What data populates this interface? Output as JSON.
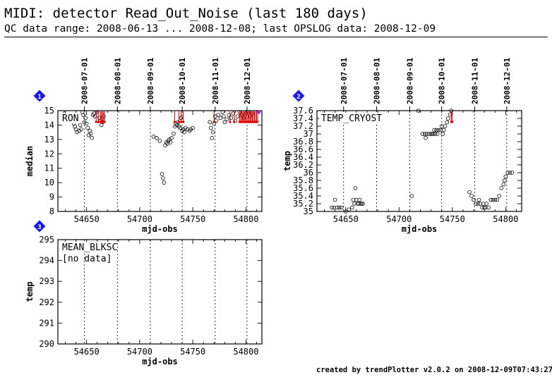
{
  "header": {
    "title": "MIDI: detector Read_Out_Noise (last 180 days)",
    "subtitle": "QC data range: 2008-06-13 ... 2008-12-08; last OPSLOG data: 2008-12-09"
  },
  "footer": {
    "text": "created by trendPlotter v2.0.2 on 2008-12-09T07:43:27"
  },
  "colors": {
    "badge": "#1a1ae6",
    "outlier": "#e00000",
    "marker": "#000000",
    "special": "#a020f0"
  },
  "chart_data": [
    {
      "type": "scatter",
      "badge": "1",
      "label": "RON",
      "xlabel": "mjd-obs",
      "ylabel": "median",
      "xlim": [
        54623,
        54815
      ],
      "ylim": [
        8,
        15
      ],
      "xticks": [
        54650,
        54700,
        54750,
        54800
      ],
      "yticks": [
        8,
        9,
        10,
        11,
        12,
        13,
        14,
        15
      ],
      "date_markers": [
        {
          "label": "2008-07-01",
          "mjd": 54648
        },
        {
          "label": "2008-08-01",
          "mjd": 54679
        },
        {
          "label": "2008-09-01",
          "mjd": 54710
        },
        {
          "label": "2008-10-01",
          "mjd": 54740
        },
        {
          "label": "2008-11-01",
          "mjd": 54771
        },
        {
          "label": "2008-12-01",
          "mjd": 54801
        }
      ],
      "points": [
        [
          54629,
          14.8
        ],
        [
          54634,
          14.6
        ],
        [
          54636,
          14.3
        ],
        [
          54638,
          14.1
        ],
        [
          54639,
          13.9
        ],
        [
          54640,
          13.7
        ],
        [
          54641,
          13.5
        ],
        [
          54643,
          13.6
        ],
        [
          54644,
          14.0
        ],
        [
          54645,
          13.7
        ],
        [
          54646,
          14.9
        ],
        [
          54647,
          14.7
        ],
        [
          54648,
          14.2
        ],
        [
          54649,
          14.5
        ],
        [
          54650,
          14.1
        ],
        [
          54651,
          13.8
        ],
        [
          54652,
          13.3
        ],
        [
          54653,
          13.6
        ],
        [
          54654,
          13.4
        ],
        [
          54655,
          13.1
        ],
        [
          54656,
          14.7
        ],
        [
          54657,
          14.8
        ],
        [
          54658,
          14.6
        ],
        [
          54660,
          14.9
        ],
        [
          54662,
          14.5
        ],
        [
          54663,
          14.3
        ],
        [
          54664,
          14.0
        ],
        [
          54665,
          14.2
        ],
        [
          54666,
          14.6
        ],
        [
          54713,
          13.2
        ],
        [
          54716,
          13.1
        ],
        [
          54719,
          12.9
        ],
        [
          54721,
          10.6
        ],
        [
          54722,
          10.3
        ],
        [
          54723,
          10.0
        ],
        [
          54724,
          12.6
        ],
        [
          54725,
          12.8
        ],
        [
          54726,
          12.7
        ],
        [
          54727,
          12.9
        ],
        [
          54728,
          13.0
        ],
        [
          54729,
          12.8
        ],
        [
          54730,
          13.1
        ],
        [
          54732,
          13.4
        ],
        [
          54733,
          13.9
        ],
        [
          54734,
          14.1
        ],
        [
          54735,
          14.0
        ],
        [
          54736,
          14.2
        ],
        [
          54737,
          13.9
        ],
        [
          54738,
          13.8
        ],
        [
          54739,
          14.5
        ],
        [
          54740,
          13.6
        ],
        [
          54741,
          13.7
        ],
        [
          54742,
          13.5
        ],
        [
          54743,
          13.8
        ],
        [
          54745,
          13.7
        ],
        [
          54747,
          13.6
        ],
        [
          54748,
          13.7
        ],
        [
          54750,
          13.8
        ],
        [
          54766,
          14.2
        ],
        [
          54767,
          13.8
        ],
        [
          54768,
          13.1
        ],
        [
          54769,
          13.5
        ],
        [
          54770,
          14.1
        ],
        [
          54771,
          14.6
        ],
        [
          54772,
          14.3
        ],
        [
          54774,
          14.7
        ],
        [
          54776,
          14.5
        ],
        [
          54778,
          14.9
        ],
        [
          54779,
          14.6
        ],
        [
          54780,
          14.2
        ],
        [
          54782,
          14.4
        ],
        [
          54784,
          14.7
        ],
        [
          54786,
          14.5
        ],
        [
          54788,
          14.8
        ],
        [
          54790,
          14.3
        ],
        [
          54792,
          14.6
        ],
        [
          54794,
          14.9
        ],
        [
          54796,
          14.7
        ],
        [
          54798,
          14.5
        ],
        [
          54800,
          14.8
        ],
        [
          54802,
          14.9
        ],
        [
          54804,
          14.6
        ],
        [
          54806,
          14.8
        ]
      ],
      "outliers_above": [
        54659,
        54661,
        54663,
        54664,
        54665,
        54666,
        54667,
        54733,
        54737,
        54739,
        54741,
        54770,
        54785,
        54789,
        54794,
        54795,
        54796,
        54797,
        54798,
        54799,
        54800,
        54801,
        54802,
        54803,
        54804,
        54805,
        54806,
        54807,
        54808,
        54809,
        54810,
        54811
      ],
      "special_points": [
        [
          54812,
          14.9
        ]
      ],
      "no_data": ""
    },
    {
      "type": "scatter",
      "badge": "2",
      "label": "TEMP_CRYOST",
      "xlabel": "mjd-obs",
      "ylabel": "temp",
      "xlim": [
        54623,
        54815
      ],
      "ylim": [
        35,
        37.6
      ],
      "xticks": [
        54650,
        54700,
        54750,
        54800
      ],
      "yticks": [
        35,
        35.2,
        35.4,
        35.6,
        35.8,
        36,
        36.2,
        36.4,
        36.6,
        36.8,
        37,
        37.2,
        37.4,
        37.6
      ],
      "ytick_labels": [
        "35",
        "35.2",
        "35.4",
        "35.6",
        "35.8",
        "36",
        "36.2",
        "36.4",
        "36.6",
        "36.8",
        "37",
        "37.2",
        "37.4",
        "37.6"
      ],
      "date_markers": [
        {
          "label": "2008-07-01",
          "mjd": 54648
        },
        {
          "label": "2008-08-01",
          "mjd": 54679
        },
        {
          "label": "2008-09-01",
          "mjd": 54710
        },
        {
          "label": "2008-10-01",
          "mjd": 54740
        },
        {
          "label": "2008-11-01",
          "mjd": 54771
        },
        {
          "label": "2008-12-01",
          "mjd": 54801
        }
      ],
      "points": [
        [
          54637,
          35.1
        ],
        [
          54639,
          35.1
        ],
        [
          54640,
          35.3
        ],
        [
          54642,
          35.1
        ],
        [
          54644,
          35.1
        ],
        [
          54646,
          35.1
        ],
        [
          54650,
          35.0
        ],
        [
          54653,
          35.05
        ],
        [
          54656,
          35.1
        ],
        [
          54657,
          35.3
        ],
        [
          54658,
          35.2
        ],
        [
          54659,
          35.6
        ],
        [
          54660,
          35.3
        ],
        [
          54661,
          35.2
        ],
        [
          54662,
          35.2
        ],
        [
          54663,
          35.3
        ],
        [
          54664,
          35.2
        ],
        [
          54665,
          35.2
        ],
        [
          54666,
          35.2
        ],
        [
          54712,
          35.4
        ],
        [
          54718,
          37.6
        ],
        [
          54722,
          37.0
        ],
        [
          54724,
          37.0
        ],
        [
          54725,
          36.9
        ],
        [
          54726,
          37.0
        ],
        [
          54728,
          37.0
        ],
        [
          54730,
          37.0
        ],
        [
          54731,
          37.0
        ],
        [
          54732,
          37.0
        ],
        [
          54733,
          37.1
        ],
        [
          54734,
          37.0
        ],
        [
          54735,
          37.1
        ],
        [
          54736,
          37.0
        ],
        [
          54737,
          37.1
        ],
        [
          54739,
          37.1
        ],
        [
          54740,
          37.2
        ],
        [
          54741,
          37.0
        ],
        [
          54742,
          37.1
        ],
        [
          54743,
          37.2
        ],
        [
          54745,
          37.3
        ],
        [
          54746,
          37.4
        ],
        [
          54748,
          37.5
        ],
        [
          54749,
          37.6
        ],
        [
          54766,
          35.5
        ],
        [
          54768,
          35.4
        ],
        [
          54770,
          35.3
        ],
        [
          54772,
          35.2
        ],
        [
          54774,
          35.2
        ],
        [
          54775,
          35.3
        ],
        [
          54776,
          35.2
        ],
        [
          54778,
          35.1
        ],
        [
          54779,
          35.2
        ],
        [
          54780,
          35.1
        ],
        [
          54781,
          35.1
        ],
        [
          54782,
          35.2
        ],
        [
          54784,
          35.1
        ],
        [
          54786,
          35.3
        ],
        [
          54788,
          35.3
        ],
        [
          54790,
          35.3
        ],
        [
          54792,
          35.3
        ],
        [
          54794,
          35.4
        ],
        [
          54796,
          35.6
        ],
        [
          54798,
          35.7
        ],
        [
          54799,
          35.8
        ],
        [
          54800,
          35.9
        ],
        [
          54802,
          36.0
        ],
        [
          54804,
          36.0
        ],
        [
          54806,
          36.0
        ]
      ],
      "outliers_above": [
        54749,
        54750
      ],
      "special_points": [],
      "no_data": ""
    },
    {
      "type": "scatter",
      "badge": "3",
      "label": "MEAN_BLKSC",
      "xlabel": "mjd-obs",
      "ylabel": "temp",
      "xlim": [
        54623,
        54815
      ],
      "ylim": [
        290,
        295
      ],
      "xticks": [
        54650,
        54700,
        54750,
        54800
      ],
      "yticks": [
        290,
        291,
        292,
        293,
        294,
        295
      ],
      "date_markers": [
        {
          "label": "",
          "mjd": 54648
        },
        {
          "label": "",
          "mjd": 54679
        },
        {
          "label": "",
          "mjd": 54710
        },
        {
          "label": "",
          "mjd": 54740
        },
        {
          "label": "",
          "mjd": 54771
        },
        {
          "label": "",
          "mjd": 54801
        }
      ],
      "points": [],
      "outliers_above": [],
      "special_points": [],
      "no_data": "[no data]"
    }
  ]
}
